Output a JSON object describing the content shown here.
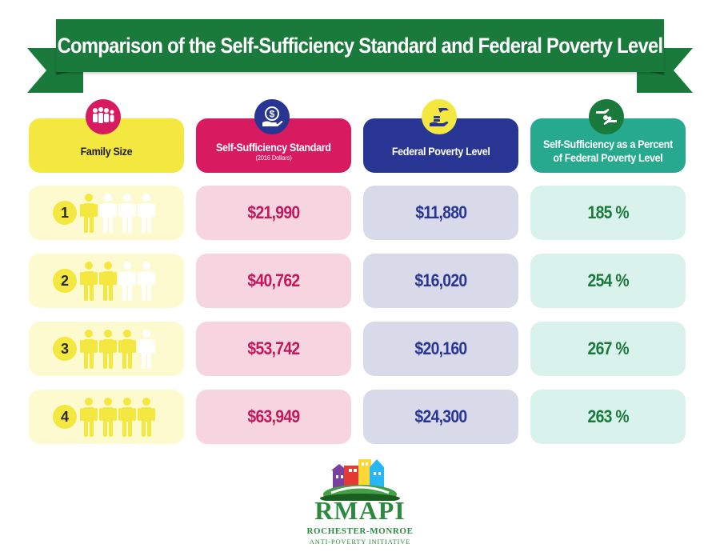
{
  "title": "Comparison of the Self-Sufficiency Standard and Federal Poverty Level",
  "colors": {
    "banner": "#1a7a3c",
    "family": "#f3e740",
    "sss": "#d81b60",
    "fpl": "#283593",
    "pct": "#26a98e"
  },
  "headers": [
    {
      "key": "family",
      "label": "Family Size",
      "icon": "family-icon"
    },
    {
      "key": "sss",
      "label": "Self-Sufficiency Standard",
      "sub": "(2016 Dollars)",
      "icon": "dollar-hand-icon"
    },
    {
      "key": "fpl",
      "label": "Federal Poverty Level",
      "icon": "coin-hand-icon"
    },
    {
      "key": "pct",
      "label_line1": "Self-Sufficiency as a Percent",
      "label_line2": "of Federal Poverty Level",
      "icon": "money-exchange-icon"
    }
  ],
  "rows": [
    {
      "size": "1",
      "filled": 1,
      "sss": "$21,990",
      "fpl": "$11,880",
      "pct": "185 %"
    },
    {
      "size": "2",
      "filled": 2,
      "sss": "$40,762",
      "fpl": "$16,020",
      "pct": "254 %"
    },
    {
      "size": "3",
      "filled": 3,
      "sss": "$53,742",
      "fpl": "$20,160",
      "pct": "267 %"
    },
    {
      "size": "4",
      "filled": 4,
      "sss": "$63,949",
      "fpl": "$24,300",
      "pct": "263 %"
    }
  ],
  "logo": {
    "name": "RMAPI",
    "line1": "ROCHESTER-MONROE",
    "line2": "ANTI-POVERTY INITIATIVE"
  }
}
